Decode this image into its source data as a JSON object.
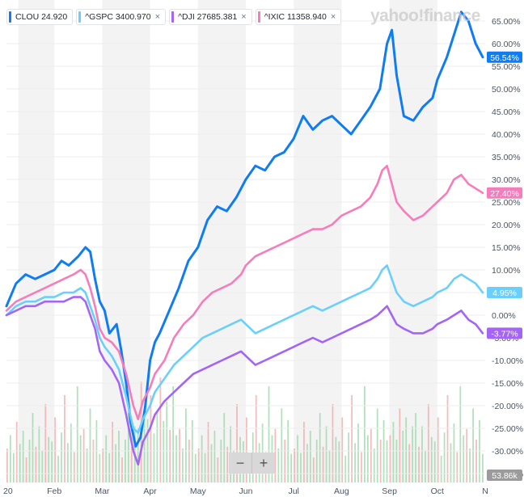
{
  "legend": {
    "items": [
      {
        "label": "CLOU 24.920",
        "color": "#0f7cf4",
        "removable": false
      },
      {
        "label": "^GSPC 3400.970",
        "color": "#6ad0fb",
        "removable": true
      },
      {
        "label": "^DJI 27685.381",
        "color": "#a465f4",
        "removable": true
      },
      {
        "label": "^IXIC 11358.940",
        "color": "#f57dbb",
        "removable": true
      }
    ],
    "close_glyph": "×"
  },
  "watermark": "yahoo!finance",
  "zoom": {
    "minus": "−",
    "plus": "+"
  },
  "chart_data": {
    "type": "line",
    "y_axis_position": "right",
    "ylim": [
      -36,
      69
    ],
    "y_ticks": [
      65,
      60,
      55,
      50,
      45,
      40,
      35,
      30,
      25,
      20,
      15,
      10,
      5,
      0,
      -5,
      -10,
      -15,
      -20,
      -25,
      -30,
      -35
    ],
    "y_tick_labels": [
      "65.00%",
      "60.00%",
      "55.00%",
      "50.00%",
      "45.00%",
      "40.00%",
      "35.00%",
      "30.00%",
      "25.00%",
      "20.00%",
      "15.00%",
      "10.00%",
      "5.00%",
      "0.00%",
      "-5.00%",
      "-10.00%",
      "-15.00%",
      "-20.00%",
      "-25.00%",
      "-30.00%",
      "-35.00%"
    ],
    "x_range": [
      0,
      10
    ],
    "x_ticks": [
      {
        "x": 0.0,
        "label": "20"
      },
      {
        "x": 1.0,
        "label": "Feb"
      },
      {
        "x": 2.0,
        "label": "Mar"
      },
      {
        "x": 3.0,
        "label": "Apr"
      },
      {
        "x": 4.0,
        "label": "May"
      },
      {
        "x": 5.0,
        "label": "Jun"
      },
      {
        "x": 6.0,
        "label": "Jul"
      },
      {
        "x": 7.0,
        "label": "Aug"
      },
      {
        "x": 8.0,
        "label": "Sep"
      },
      {
        "x": 9.0,
        "label": "Oct"
      },
      {
        "x": 10.0,
        "label": "N"
      }
    ],
    "shaded_bands": [
      [
        0.25,
        1.0
      ],
      [
        2.0,
        3.0
      ],
      [
        4.0,
        5.0
      ],
      [
        6.0,
        7.0
      ],
      [
        8.0,
        9.0
      ]
    ],
    "series": [
      {
        "name": "CLOU",
        "color": "#0f7cf4",
        "last_label": "56.54%",
        "points": [
          [
            0.0,
            2
          ],
          [
            0.2,
            7
          ],
          [
            0.4,
            9
          ],
          [
            0.6,
            8
          ],
          [
            0.8,
            9
          ],
          [
            1.0,
            10
          ],
          [
            1.15,
            12
          ],
          [
            1.3,
            11
          ],
          [
            1.5,
            13
          ],
          [
            1.65,
            15
          ],
          [
            1.75,
            14
          ],
          [
            1.85,
            8
          ],
          [
            1.95,
            3
          ],
          [
            2.05,
            1
          ],
          [
            2.15,
            -4
          ],
          [
            2.3,
            -2
          ],
          [
            2.4,
            -8
          ],
          [
            2.5,
            -15
          ],
          [
            2.6,
            -24
          ],
          [
            2.7,
            -29
          ],
          [
            2.8,
            -27
          ],
          [
            2.9,
            -20
          ],
          [
            3.0,
            -10
          ],
          [
            3.1,
            -6
          ],
          [
            3.2,
            -4
          ],
          [
            3.4,
            1
          ],
          [
            3.6,
            6
          ],
          [
            3.8,
            12
          ],
          [
            4.0,
            15
          ],
          [
            4.2,
            21
          ],
          [
            4.4,
            24
          ],
          [
            4.6,
            23
          ],
          [
            4.8,
            26
          ],
          [
            5.0,
            30
          ],
          [
            5.2,
            33
          ],
          [
            5.4,
            32
          ],
          [
            5.6,
            35
          ],
          [
            5.8,
            36
          ],
          [
            6.0,
            39
          ],
          [
            6.2,
            44
          ],
          [
            6.4,
            41
          ],
          [
            6.6,
            43
          ],
          [
            6.8,
            44
          ],
          [
            7.0,
            42
          ],
          [
            7.2,
            40
          ],
          [
            7.4,
            43
          ],
          [
            7.6,
            46
          ],
          [
            7.8,
            50
          ],
          [
            7.95,
            60
          ],
          [
            8.05,
            63
          ],
          [
            8.15,
            53
          ],
          [
            8.3,
            44
          ],
          [
            8.5,
            43
          ],
          [
            8.7,
            46
          ],
          [
            8.9,
            48
          ],
          [
            9.0,
            52
          ],
          [
            9.2,
            57
          ],
          [
            9.35,
            62
          ],
          [
            9.5,
            67
          ],
          [
            9.65,
            65
          ],
          [
            9.8,
            60
          ],
          [
            9.95,
            57
          ]
        ]
      },
      {
        "name": "^IXIC",
        "color": "#f57dbb",
        "last_label": "27.40%",
        "points": [
          [
            0.0,
            1
          ],
          [
            0.2,
            3
          ],
          [
            0.4,
            4
          ],
          [
            0.6,
            5
          ],
          [
            0.8,
            6
          ],
          [
            1.0,
            7
          ],
          [
            1.2,
            8
          ],
          [
            1.4,
            9
          ],
          [
            1.55,
            10
          ],
          [
            1.65,
            9
          ],
          [
            1.75,
            6
          ],
          [
            1.85,
            2
          ],
          [
            1.95,
            -3
          ],
          [
            2.05,
            -5
          ],
          [
            2.2,
            -6
          ],
          [
            2.35,
            -8
          ],
          [
            2.5,
            -13
          ],
          [
            2.65,
            -20
          ],
          [
            2.75,
            -23
          ],
          [
            2.85,
            -19
          ],
          [
            3.0,
            -16
          ],
          [
            3.1,
            -13
          ],
          [
            3.3,
            -10
          ],
          [
            3.5,
            -5
          ],
          [
            3.7,
            -2
          ],
          [
            3.9,
            0
          ],
          [
            4.1,
            3
          ],
          [
            4.3,
            5
          ],
          [
            4.5,
            6
          ],
          [
            4.7,
            7
          ],
          [
            4.9,
            9
          ],
          [
            5.0,
            11
          ],
          [
            5.2,
            13
          ],
          [
            5.4,
            14
          ],
          [
            5.6,
            15
          ],
          [
            5.8,
            16
          ],
          [
            6.0,
            17
          ],
          [
            6.2,
            18
          ],
          [
            6.4,
            19
          ],
          [
            6.6,
            19
          ],
          [
            6.8,
            20
          ],
          [
            7.0,
            22
          ],
          [
            7.2,
            23
          ],
          [
            7.4,
            24
          ],
          [
            7.6,
            26
          ],
          [
            7.75,
            29
          ],
          [
            7.85,
            32
          ],
          [
            7.95,
            33
          ],
          [
            8.05,
            29
          ],
          [
            8.15,
            25
          ],
          [
            8.3,
            23
          ],
          [
            8.5,
            21
          ],
          [
            8.7,
            22
          ],
          [
            8.9,
            24
          ],
          [
            9.0,
            25
          ],
          [
            9.2,
            27
          ],
          [
            9.35,
            30
          ],
          [
            9.5,
            31
          ],
          [
            9.65,
            29
          ],
          [
            9.8,
            28
          ],
          [
            9.95,
            27
          ]
        ]
      },
      {
        "name": "^GSPC",
        "color": "#6ad0fb",
        "last_label": "4.95%",
        "points": [
          [
            0.0,
            0
          ],
          [
            0.2,
            2
          ],
          [
            0.4,
            3
          ],
          [
            0.6,
            3
          ],
          [
            0.8,
            4
          ],
          [
            1.0,
            4
          ],
          [
            1.2,
            5
          ],
          [
            1.4,
            5
          ],
          [
            1.55,
            6
          ],
          [
            1.65,
            5
          ],
          [
            1.75,
            2
          ],
          [
            1.85,
            -1
          ],
          [
            1.95,
            -5
          ],
          [
            2.05,
            -7
          ],
          [
            2.2,
            -9
          ],
          [
            2.35,
            -12
          ],
          [
            2.5,
            -18
          ],
          [
            2.65,
            -25
          ],
          [
            2.75,
            -26
          ],
          [
            2.85,
            -23
          ],
          [
            3.0,
            -20
          ],
          [
            3.1,
            -17
          ],
          [
            3.3,
            -14
          ],
          [
            3.5,
            -11
          ],
          [
            3.7,
            -9
          ],
          [
            3.9,
            -7
          ],
          [
            4.1,
            -5
          ],
          [
            4.3,
            -4
          ],
          [
            4.5,
            -3
          ],
          [
            4.7,
            -2
          ],
          [
            4.9,
            -1
          ],
          [
            5.0,
            -2
          ],
          [
            5.2,
            -4
          ],
          [
            5.4,
            -3
          ],
          [
            5.6,
            -2
          ],
          [
            5.8,
            -1
          ],
          [
            6.0,
            0
          ],
          [
            6.2,
            1
          ],
          [
            6.4,
            2
          ],
          [
            6.6,
            1
          ],
          [
            6.8,
            2
          ],
          [
            7.0,
            3
          ],
          [
            7.2,
            4
          ],
          [
            7.4,
            5
          ],
          [
            7.6,
            6
          ],
          [
            7.75,
            8
          ],
          [
            7.85,
            10
          ],
          [
            7.95,
            11
          ],
          [
            8.05,
            8
          ],
          [
            8.15,
            5
          ],
          [
            8.3,
            3
          ],
          [
            8.5,
            2
          ],
          [
            8.7,
            3
          ],
          [
            8.9,
            4
          ],
          [
            9.0,
            5
          ],
          [
            9.2,
            6
          ],
          [
            9.35,
            8
          ],
          [
            9.5,
            9
          ],
          [
            9.65,
            8
          ],
          [
            9.8,
            7
          ],
          [
            9.95,
            5
          ]
        ]
      },
      {
        "name": "^DJI",
        "color": "#a465f4",
        "last_label": "-3.77%",
        "points": [
          [
            0.0,
            0
          ],
          [
            0.2,
            1
          ],
          [
            0.4,
            2
          ],
          [
            0.6,
            2
          ],
          [
            0.8,
            3
          ],
          [
            1.0,
            3
          ],
          [
            1.2,
            3
          ],
          [
            1.4,
            4
          ],
          [
            1.55,
            4
          ],
          [
            1.65,
            3
          ],
          [
            1.75,
            0
          ],
          [
            1.85,
            -3
          ],
          [
            1.95,
            -8
          ],
          [
            2.05,
            -10
          ],
          [
            2.2,
            -12
          ],
          [
            2.35,
            -15
          ],
          [
            2.5,
            -22
          ],
          [
            2.65,
            -30
          ],
          [
            2.75,
            -33
          ],
          [
            2.85,
            -28
          ],
          [
            3.0,
            -25
          ],
          [
            3.1,
            -22
          ],
          [
            3.3,
            -19
          ],
          [
            3.5,
            -17
          ],
          [
            3.7,
            -15
          ],
          [
            3.9,
            -13
          ],
          [
            4.1,
            -12
          ],
          [
            4.3,
            -11
          ],
          [
            4.5,
            -10
          ],
          [
            4.7,
            -9
          ],
          [
            4.9,
            -8
          ],
          [
            5.0,
            -9
          ],
          [
            5.2,
            -11
          ],
          [
            5.4,
            -10
          ],
          [
            5.6,
            -9
          ],
          [
            5.8,
            -8
          ],
          [
            6.0,
            -7
          ],
          [
            6.2,
            -6
          ],
          [
            6.4,
            -5
          ],
          [
            6.6,
            -6
          ],
          [
            6.8,
            -5
          ],
          [
            7.0,
            -4
          ],
          [
            7.2,
            -3
          ],
          [
            7.4,
            -2
          ],
          [
            7.6,
            -1
          ],
          [
            7.75,
            0
          ],
          [
            7.85,
            1
          ],
          [
            7.95,
            2
          ],
          [
            8.05,
            0
          ],
          [
            8.15,
            -2
          ],
          [
            8.3,
            -3
          ],
          [
            8.5,
            -4
          ],
          [
            8.7,
            -4
          ],
          [
            8.9,
            -3
          ],
          [
            9.0,
            -2
          ],
          [
            9.2,
            -1
          ],
          [
            9.35,
            0
          ],
          [
            9.5,
            1
          ],
          [
            9.65,
            -1
          ],
          [
            9.8,
            -2
          ],
          [
            9.95,
            -4
          ]
        ]
      }
    ],
    "volume_label": "53.86k",
    "volume_bars": {
      "count": 150,
      "pattern": [
        0.2,
        0.35,
        0.15,
        0.5,
        0.25,
        0.4,
        0.1,
        0.3,
        0.6,
        0.22,
        0.45,
        0.18,
        0.7,
        0.33,
        0.28,
        0.55,
        0.12,
        0.38,
        0.8,
        0.26,
        0.48,
        0.16,
        0.9,
        0.35,
        0.42,
        0.2,
        0.65,
        0.3,
        0.52,
        0.14
      ]
    }
  }
}
